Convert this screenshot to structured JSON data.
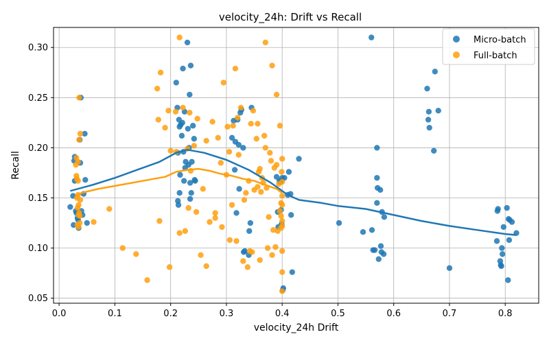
{
  "chart_data": {
    "type": "scatter",
    "title": "velocity_24h: Drift vs Recall",
    "xlabel": "velocity_24h Drift",
    "ylabel": "Recall",
    "xlim": [
      -0.01,
      0.86
    ],
    "ylim": [
      0.045,
      0.32
    ],
    "xticks": [
      0.0,
      0.1,
      0.2,
      0.3,
      0.4,
      0.5,
      0.6,
      0.7,
      0.8
    ],
    "yticks": [
      0.05,
      0.1,
      0.15,
      0.2,
      0.25,
      0.3
    ],
    "grid": true,
    "legend_position": "top-right",
    "series": [
      {
        "name": "Micro-batch",
        "color": "#1f77b4",
        "points": [
          [
            0.02,
            0.141
          ],
          [
            0.025,
            0.152
          ],
          [
            0.026,
            0.123
          ],
          [
            0.027,
            0.187
          ],
          [
            0.028,
            0.191
          ],
          [
            0.028,
            0.167
          ],
          [
            0.03,
            0.137
          ],
          [
            0.031,
            0.135
          ],
          [
            0.033,
            0.13
          ],
          [
            0.034,
            0.128
          ],
          [
            0.035,
            0.12
          ],
          [
            0.037,
            0.208
          ],
          [
            0.038,
            0.185
          ],
          [
            0.039,
            0.25
          ],
          [
            0.04,
            0.137
          ],
          [
            0.042,
            0.133
          ],
          [
            0.044,
            0.154
          ],
          [
            0.046,
            0.214
          ],
          [
            0.047,
            0.168
          ],
          [
            0.05,
            0.125
          ],
          [
            0.21,
            0.265
          ],
          [
            0.212,
            0.24
          ],
          [
            0.213,
            0.195
          ],
          [
            0.213,
            0.147
          ],
          [
            0.214,
            0.143
          ],
          [
            0.215,
            0.228
          ],
          [
            0.216,
            0.221
          ],
          [
            0.216,
            0.155
          ],
          [
            0.217,
            0.173
          ],
          [
            0.218,
            0.223
          ],
          [
            0.22,
            0.212
          ],
          [
            0.221,
            0.225
          ],
          [
            0.222,
            0.279
          ],
          [
            0.223,
            0.196
          ],
          [
            0.224,
            0.167
          ],
          [
            0.225,
            0.236
          ],
          [
            0.226,
            0.18
          ],
          [
            0.227,
            0.186
          ],
          [
            0.23,
            0.305
          ],
          [
            0.231,
            0.219
          ],
          [
            0.232,
            0.183
          ],
          [
            0.233,
            0.2
          ],
          [
            0.234,
            0.253
          ],
          [
            0.235,
            0.149
          ],
          [
            0.235,
            0.165
          ],
          [
            0.236,
            0.282
          ],
          [
            0.237,
            0.155
          ],
          [
            0.238,
            0.186
          ],
          [
            0.24,
            0.222
          ],
          [
            0.242,
            0.209
          ],
          [
            0.243,
            0.168
          ],
          [
            0.244,
            0.167
          ],
          [
            0.31,
            0.21
          ],
          [
            0.313,
            0.227
          ],
          [
            0.315,
            0.178
          ],
          [
            0.316,
            0.206
          ],
          [
            0.318,
            0.135
          ],
          [
            0.32,
            0.228
          ],
          [
            0.322,
            0.203
          ],
          [
            0.323,
            0.159
          ],
          [
            0.325,
            0.235
          ],
          [
            0.327,
            0.238
          ],
          [
            0.33,
            0.2
          ],
          [
            0.331,
            0.096
          ],
          [
            0.333,
            0.097
          ],
          [
            0.34,
            0.093
          ],
          [
            0.341,
            0.117
          ],
          [
            0.343,
            0.125
          ],
          [
            0.345,
            0.24
          ],
          [
            0.39,
            0.171
          ],
          [
            0.392,
            0.136
          ],
          [
            0.393,
            0.121
          ],
          [
            0.395,
            0.167
          ],
          [
            0.397,
            0.166
          ],
          [
            0.398,
            0.138
          ],
          [
            0.399,
            0.124
          ],
          [
            0.4,
            0.17
          ],
          [
            0.401,
            0.058
          ],
          [
            0.402,
            0.06
          ],
          [
            0.404,
            0.17
          ],
          [
            0.41,
            0.153
          ],
          [
            0.412,
            0.176
          ],
          [
            0.415,
            0.154
          ],
          [
            0.416,
            0.133
          ],
          [
            0.418,
            0.076
          ],
          [
            0.43,
            0.189
          ],
          [
            0.502,
            0.125
          ],
          [
            0.545,
            0.116
          ],
          [
            0.56,
            0.31
          ],
          [
            0.561,
            0.118
          ],
          [
            0.563,
            0.098
          ],
          [
            0.566,
            0.098
          ],
          [
            0.57,
            0.145
          ],
          [
            0.57,
            0.2
          ],
          [
            0.57,
            0.17
          ],
          [
            0.571,
            0.16
          ],
          [
            0.573,
            0.089
          ],
          [
            0.576,
            0.158
          ],
          [
            0.577,
            0.102
          ],
          [
            0.578,
            0.096
          ],
          [
            0.579,
            0.136
          ],
          [
            0.582,
            0.094
          ],
          [
            0.583,
            0.131
          ],
          [
            0.66,
            0.259
          ],
          [
            0.662,
            0.228
          ],
          [
            0.663,
            0.236
          ],
          [
            0.664,
            0.22
          ],
          [
            0.672,
            0.197
          ],
          [
            0.674,
            0.276
          ],
          [
            0.68,
            0.237
          ],
          [
            0.7,
            0.08
          ],
          [
            0.785,
            0.107
          ],
          [
            0.786,
            0.137
          ],
          [
            0.787,
            0.139
          ],
          [
            0.791,
            0.087
          ],
          [
            0.792,
            0.083
          ],
          [
            0.793,
            0.082
          ],
          [
            0.794,
            0.1
          ],
          [
            0.795,
            0.094
          ],
          [
            0.797,
            0.121
          ],
          [
            0.803,
            0.14
          ],
          [
            0.805,
            0.068
          ],
          [
            0.806,
            0.129
          ],
          [
            0.807,
            0.108
          ],
          [
            0.808,
            0.128
          ],
          [
            0.812,
            0.126
          ],
          [
            0.82,
            0.115
          ]
        ]
      },
      {
        "name": "Full-batch",
        "color": "#ff9f0e",
        "points": [
          [
            0.03,
            0.183
          ],
          [
            0.031,
            0.19
          ],
          [
            0.031,
            0.172
          ],
          [
            0.032,
            0.169
          ],
          [
            0.032,
            0.15
          ],
          [
            0.033,
            0.14
          ],
          [
            0.033,
            0.123
          ],
          [
            0.034,
            0.186
          ],
          [
            0.034,
            0.167
          ],
          [
            0.034,
            0.153
          ],
          [
            0.035,
            0.143
          ],
          [
            0.035,
            0.133
          ],
          [
            0.035,
            0.121
          ],
          [
            0.036,
            0.25
          ],
          [
            0.036,
            0.208
          ],
          [
            0.036,
            0.135
          ],
          [
            0.037,
            0.132
          ],
          [
            0.037,
            0.125
          ],
          [
            0.038,
            0.214
          ],
          [
            0.038,
            0.148
          ],
          [
            0.062,
            0.126
          ],
          [
            0.09,
            0.139
          ],
          [
            0.114,
            0.1
          ],
          [
            0.138,
            0.094
          ],
          [
            0.158,
            0.068
          ],
          [
            0.176,
            0.259
          ],
          [
            0.178,
            0.228
          ],
          [
            0.18,
            0.127
          ],
          [
            0.182,
            0.275
          ],
          [
            0.19,
            0.22
          ],
          [
            0.196,
            0.237
          ],
          [
            0.198,
            0.081
          ],
          [
            0.2,
            0.197
          ],
          [
            0.209,
            0.236
          ],
          [
            0.21,
            0.196
          ],
          [
            0.216,
            0.31
          ],
          [
            0.216,
            0.115
          ],
          [
            0.222,
            0.24
          ],
          [
            0.226,
            0.117
          ],
          [
            0.23,
            0.199
          ],
          [
            0.232,
            0.14
          ],
          [
            0.234,
            0.235
          ],
          [
            0.236,
            0.177
          ],
          [
            0.242,
            0.202
          ],
          [
            0.246,
            0.136
          ],
          [
            0.248,
            0.229
          ],
          [
            0.254,
            0.093
          ],
          [
            0.258,
            0.159
          ],
          [
            0.264,
            0.207
          ],
          [
            0.264,
            0.082
          ],
          [
            0.27,
            0.126
          ],
          [
            0.275,
            0.226
          ],
          [
            0.28,
            0.135
          ],
          [
            0.28,
            0.13
          ],
          [
            0.285,
            0.21
          ],
          [
            0.29,
            0.185
          ],
          [
            0.292,
            0.121
          ],
          [
            0.295,
            0.265
          ],
          [
            0.3,
            0.173
          ],
          [
            0.302,
            0.221
          ],
          [
            0.305,
            0.196
          ],
          [
            0.306,
            0.108
          ],
          [
            0.31,
            0.143
          ],
          [
            0.312,
            0.222
          ],
          [
            0.316,
            0.279
          ],
          [
            0.318,
            0.107
          ],
          [
            0.32,
            0.23
          ],
          [
            0.322,
            0.193
          ],
          [
            0.326,
            0.24
          ],
          [
            0.33,
            0.087
          ],
          [
            0.332,
            0.148
          ],
          [
            0.335,
            0.155
          ],
          [
            0.338,
            0.081
          ],
          [
            0.34,
            0.167
          ],
          [
            0.342,
            0.097
          ],
          [
            0.344,
            0.224
          ],
          [
            0.346,
            0.096
          ],
          [
            0.348,
            0.237
          ],
          [
            0.35,
            0.158
          ],
          [
            0.354,
            0.209
          ],
          [
            0.356,
            0.161
          ],
          [
            0.356,
            0.224
          ],
          [
            0.358,
            0.176
          ],
          [
            0.36,
            0.179
          ],
          [
            0.36,
            0.088
          ],
          [
            0.362,
            0.156
          ],
          [
            0.364,
            0.17
          ],
          [
            0.366,
            0.165
          ],
          [
            0.368,
            0.212
          ],
          [
            0.37,
            0.305
          ],
          [
            0.37,
            0.2
          ],
          [
            0.372,
            0.16
          ],
          [
            0.374,
            0.1
          ],
          [
            0.376,
            0.131
          ],
          [
            0.378,
            0.195
          ],
          [
            0.38,
            0.187
          ],
          [
            0.382,
            0.093
          ],
          [
            0.382,
            0.282
          ],
          [
            0.384,
            0.118
          ],
          [
            0.386,
            0.18
          ],
          [
            0.388,
            0.101
          ],
          [
            0.39,
            0.183
          ],
          [
            0.39,
            0.253
          ],
          [
            0.392,
            0.117
          ],
          [
            0.394,
            0.164
          ],
          [
            0.396,
            0.137
          ],
          [
            0.396,
            0.222
          ],
          [
            0.398,
            0.145
          ],
          [
            0.398,
            0.132
          ],
          [
            0.398,
            0.12
          ],
          [
            0.399,
            0.176
          ],
          [
            0.4,
            0.189
          ],
          [
            0.4,
            0.166
          ],
          [
            0.4,
            0.152
          ],
          [
            0.4,
            0.143
          ],
          [
            0.4,
            0.127
          ],
          [
            0.4,
            0.122
          ],
          [
            0.4,
            0.097
          ],
          [
            0.4,
            0.076
          ],
          [
            0.4,
            0.057
          ]
        ]
      }
    ],
    "trend_lines": [
      {
        "series": "Micro-batch",
        "color": "#1f77b4",
        "points": [
          [
            0.02,
            0.157
          ],
          [
            0.06,
            0.163
          ],
          [
            0.1,
            0.17
          ],
          [
            0.14,
            0.178
          ],
          [
            0.18,
            0.186
          ],
          [
            0.21,
            0.195
          ],
          [
            0.23,
            0.198
          ],
          [
            0.26,
            0.195
          ],
          [
            0.3,
            0.188
          ],
          [
            0.34,
            0.178
          ],
          [
            0.38,
            0.165
          ],
          [
            0.41,
            0.153
          ],
          [
            0.43,
            0.148
          ],
          [
            0.47,
            0.145
          ],
          [
            0.5,
            0.142
          ],
          [
            0.55,
            0.139
          ],
          [
            0.6,
            0.133
          ],
          [
            0.65,
            0.127
          ],
          [
            0.7,
            0.122
          ],
          [
            0.75,
            0.118
          ],
          [
            0.8,
            0.114
          ],
          [
            0.82,
            0.113
          ]
        ]
      },
      {
        "series": "Full-batch",
        "color": "#ff9f0e",
        "points": [
          [
            0.03,
            0.152
          ],
          [
            0.04,
            0.155
          ],
          [
            0.07,
            0.159
          ],
          [
            0.1,
            0.162
          ],
          [
            0.13,
            0.165
          ],
          [
            0.16,
            0.168
          ],
          [
            0.19,
            0.171
          ],
          [
            0.21,
            0.176
          ],
          [
            0.23,
            0.178
          ],
          [
            0.25,
            0.179
          ],
          [
            0.27,
            0.177
          ],
          [
            0.29,
            0.174
          ],
          [
            0.31,
            0.172
          ],
          [
            0.33,
            0.169
          ],
          [
            0.35,
            0.167
          ],
          [
            0.37,
            0.163
          ],
          [
            0.39,
            0.159
          ],
          [
            0.4,
            0.155
          ]
        ]
      }
    ]
  }
}
